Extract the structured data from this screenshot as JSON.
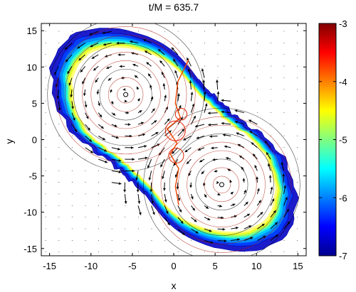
{
  "chart_data": {
    "type": "contour-vector",
    "title": "t/M = 635.7",
    "xlabel": "x",
    "ylabel": "y",
    "xlim": [
      -16,
      16
    ],
    "ylim": [
      -16,
      16
    ],
    "xticks": [
      -15,
      -10,
      -5,
      0,
      5,
      10,
      15
    ],
    "yticks": [
      -15,
      -10,
      -5,
      0,
      5,
      10,
      15
    ],
    "colorbar": {
      "range": [
        -7,
        -3
      ],
      "ticks": [
        -7,
        -6,
        -5,
        -4,
        -3
      ],
      "colormap": "jet"
    },
    "stars": [
      {
        "center": [
          -5.8,
          6.2
        ]
      },
      {
        "center": [
          5.8,
          -6.2
        ]
      }
    ],
    "grid": "off",
    "colors": {
      "vectors": "#000000",
      "orbits": "#cc2200",
      "outer_contours": "#0000cc"
    }
  }
}
